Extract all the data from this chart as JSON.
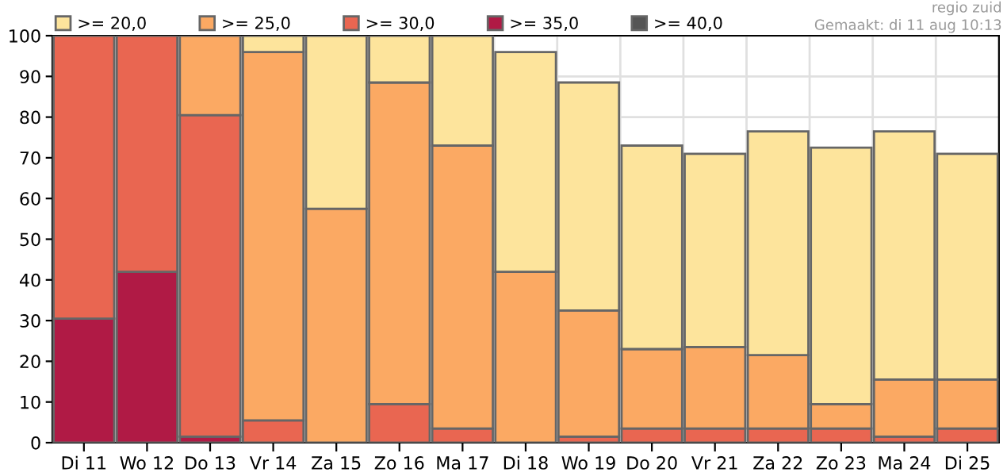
{
  "chart_data": {
    "type": "bar",
    "stacked": true,
    "categories": [
      "Di 11",
      "Wo 12",
      "Do 13",
      "Vr 14",
      "Za 15",
      "Zo 16",
      "Ma 17",
      "Di 18",
      "Wo 19",
      "Do 20",
      "Vr 21",
      "Za 22",
      "Zo 23",
      "Ma 24",
      "Di 25"
    ],
    "series": [
      {
        "name": ">= 40,0",
        "color": "#555555",
        "values": [
          0,
          0,
          0,
          0,
          0,
          0,
          0,
          0,
          0,
          0,
          0,
          0,
          0,
          0,
          0
        ]
      },
      {
        "name": ">= 35,0",
        "color": "#b01a45",
        "values": [
          30.5,
          42,
          1.5,
          0,
          0,
          0,
          0,
          0,
          0,
          0,
          0,
          0,
          0,
          0,
          0
        ]
      },
      {
        "name": ">= 30,0",
        "color": "#e96651",
        "values": [
          69.5,
          58,
          79,
          5.5,
          0,
          9.5,
          3.5,
          0,
          1.5,
          3.5,
          3.5,
          3.5,
          3.5,
          1.5,
          3.5
        ]
      },
      {
        "name": ">= 25,0",
        "color": "#fba963",
        "values": [
          0,
          0,
          19.5,
          90.5,
          57.5,
          79,
          69.5,
          42,
          31,
          19.5,
          20,
          18,
          6,
          14,
          12
        ]
      },
      {
        "name": ">= 20,0",
        "color": "#fde49c",
        "values": [
          0,
          0,
          0,
          4,
          42.5,
          11.5,
          27,
          54,
          56,
          50,
          47.5,
          55,
          63,
          61,
          55.5
        ]
      }
    ],
    "ylim": [
      0,
      100
    ],
    "yticks": [
      0,
      10,
      20,
      30,
      40,
      50,
      60,
      70,
      80,
      90,
      100
    ],
    "grid": true,
    "legend": "top left",
    "annotations": [
      "regio zuid",
      "Gemaakt: di 11 aug 10:13"
    ]
  }
}
